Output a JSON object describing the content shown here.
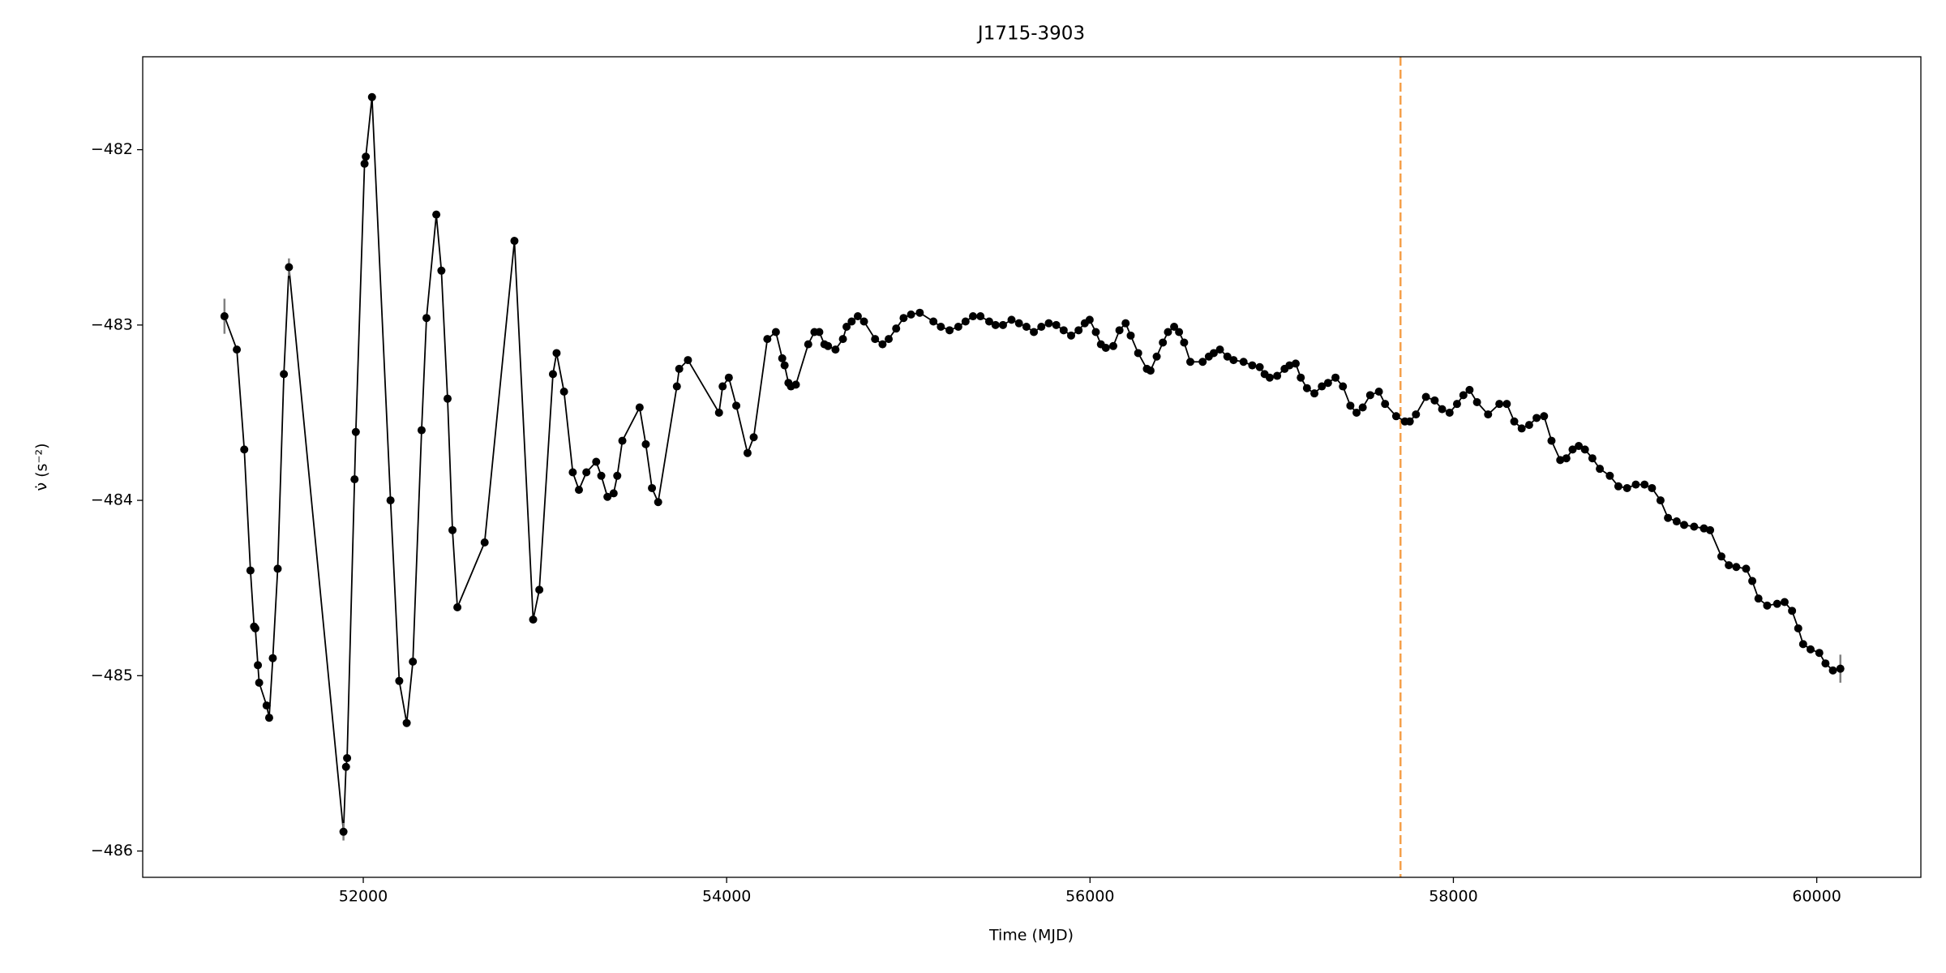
{
  "chart_data": {
    "type": "line",
    "title": "J1715-3903",
    "xlabel": "Time (MJD)",
    "ylabel": "ν̇ (s⁻²)",
    "xlim": [
      50786,
      60573
    ],
    "ylim": [
      -486.15,
      -481.47
    ],
    "xticks": [
      52000,
      54000,
      56000,
      58000,
      60000
    ],
    "yticks": [
      {
        "value": -486,
        "label": "−486"
      },
      {
        "value": -485,
        "label": "−485"
      },
      {
        "value": -484,
        "label": "−484"
      },
      {
        "value": -483,
        "label": "−483"
      },
      {
        "value": -482,
        "label": "−482"
      }
    ],
    "grid": false,
    "series": [
      {
        "color": "#000000",
        "error_color": "#808080",
        "x": [
          51236,
          51304,
          51345,
          51379,
          51399,
          51406,
          51420,
          51427,
          51468,
          51482,
          51502,
          51529,
          51563,
          51591,
          51891,
          51905,
          51911,
          51952,
          51959,
          52007,
          52014,
          52048,
          52150,
          52198,
          52239,
          52273,
          52321,
          52348,
          52402,
          52430,
          52464,
          52491,
          52518,
          52668,
          52832,
          52935,
          52969,
          53044,
          53064,
          53105,
          53153,
          53187,
          53228,
          53282,
          53310,
          53344,
          53378,
          53398,
          53426,
          53521,
          53555,
          53589,
          53623,
          53726,
          53739,
          53787,
          53958,
          53978,
          54012,
          54053,
          54115,
          54149,
          54224,
          54271,
          54306,
          54319,
          54340,
          54354,
          54381,
          54449,
          54483,
          54510,
          54538,
          54558,
          54599,
          54640,
          54660,
          54688,
          54722,
          54756,
          54817,
          54858,
          54892,
          54933,
          54974,
          55015,
          55063,
          55138,
          55179,
          55227,
          55275,
          55315,
          55356,
          55397,
          55445,
          55480,
          55521,
          55568,
          55609,
          55650,
          55691,
          55732,
          55773,
          55814,
          55855,
          55896,
          55937,
          55971,
          55998,
          56032,
          56060,
          56087,
          56128,
          56162,
          56196,
          56224,
          56265,
          56313,
          56333,
          56367,
          56401,
          56429,
          56463,
          56490,
          56518,
          56552,
          56620,
          56654,
          56681,
          56715,
          56756,
          56790,
          56845,
          56893,
          56934,
          56961,
          56989,
          57030,
          57071,
          57098,
          57132,
          57160,
          57194,
          57235,
          57276,
          57310,
          57351,
          57392,
          57433,
          57467,
          57501,
          57542,
          57590,
          57624,
          57685,
          57733,
          57760,
          57794,
          57849,
          57897,
          57938,
          57979,
          58020,
          58055,
          58089,
          58130,
          58191,
          58253,
          58294,
          58335,
          58376,
          58417,
          58458,
          58499,
          58540,
          58588,
          58622,
          58656,
          58690,
          58724,
          58765,
          58806,
          58861,
          58908,
          58956,
          59004,
          59052,
          59093,
          59140,
          59181,
          59229,
          59270,
          59325,
          59379,
          59413,
          59475,
          59516,
          59557,
          59611,
          59645,
          59679,
          59727,
          59782,
          59823,
          59864,
          59898,
          59925,
          59966,
          60014,
          60048,
          60089,
          60130
        ],
        "values": [
          -482.95,
          -483.14,
          -483.71,
          -484.4,
          -484.72,
          -484.73,
          -484.94,
          -485.04,
          -485.17,
          -485.24,
          -484.9,
          -484.39,
          -483.28,
          -482.67,
          -485.89,
          -485.52,
          -485.47,
          -483.88,
          -483.61,
          -482.08,
          -482.04,
          -481.7,
          -484.0,
          -485.03,
          -485.27,
          -484.92,
          -483.6,
          -482.96,
          -482.37,
          -482.69,
          -483.42,
          -484.17,
          -484.61,
          -484.24,
          -482.52,
          -484.68,
          -484.51,
          -483.28,
          -483.16,
          -483.38,
          -483.84,
          -483.94,
          -483.84,
          -483.78,
          -483.86,
          -483.98,
          -483.96,
          -483.86,
          -483.66,
          -483.47,
          -483.68,
          -483.93,
          -484.01,
          -483.35,
          -483.25,
          -483.2,
          -483.5,
          -483.35,
          -483.3,
          -483.46,
          -483.73,
          -483.64,
          -483.08,
          -483.04,
          -483.19,
          -483.23,
          -483.33,
          -483.35,
          -483.34,
          -483.11,
          -483.04,
          -483.04,
          -483.11,
          -483.12,
          -483.14,
          -483.08,
          -483.01,
          -482.98,
          -482.95,
          -482.98,
          -483.08,
          -483.11,
          -483.08,
          -483.02,
          -482.96,
          -482.94,
          -482.93,
          -482.98,
          -483.01,
          -483.03,
          -483.01,
          -482.98,
          -482.95,
          -482.95,
          -482.98,
          -483.0,
          -483.0,
          -482.97,
          -482.99,
          -483.01,
          -483.04,
          -483.01,
          -482.99,
          -483.0,
          -483.03,
          -483.06,
          -483.03,
          -482.99,
          -482.97,
          -483.04,
          -483.11,
          -483.13,
          -483.12,
          -483.03,
          -482.99,
          -483.06,
          -483.16,
          -483.25,
          -483.26,
          -483.18,
          -483.1,
          -483.04,
          -483.01,
          -483.04,
          -483.1,
          -483.21,
          -483.21,
          -483.18,
          -483.16,
          -483.14,
          -483.18,
          -483.2,
          -483.21,
          -483.23,
          -483.24,
          -483.28,
          -483.3,
          -483.29,
          -483.25,
          -483.23,
          -483.22,
          -483.3,
          -483.36,
          -483.39,
          -483.35,
          -483.33,
          -483.3,
          -483.35,
          -483.46,
          -483.5,
          -483.47,
          -483.4,
          -483.38,
          -483.45,
          -483.52,
          -483.55,
          -483.55,
          -483.51,
          -483.41,
          -483.43,
          -483.48,
          -483.5,
          -483.45,
          -483.4,
          -483.37,
          -483.44,
          -483.51,
          -483.45,
          -483.45,
          -483.55,
          -483.59,
          -483.57,
          -483.53,
          -483.52,
          -483.66,
          -483.77,
          -483.76,
          -483.71,
          -483.69,
          -483.71,
          -483.76,
          -483.82,
          -483.86,
          -483.92,
          -483.93,
          -483.91,
          -483.91,
          -483.93,
          -484.0,
          -484.1,
          -484.12,
          -484.14,
          -484.15,
          -484.16,
          -484.17,
          -484.32,
          -484.37,
          -484.38,
          -484.39,
          -484.46,
          -484.56,
          -484.6,
          -484.59,
          -484.58,
          -484.63,
          -484.73,
          -484.82,
          -484.85,
          -484.87,
          -484.93,
          -484.97,
          -484.96
        ],
        "yerr": [
          0.1,
          0.01,
          0.01,
          0.01,
          0.01,
          0.01,
          0.01,
          0.01,
          0.01,
          0.01,
          0.01,
          0.01,
          0.01,
          0.05,
          0.05,
          0.01,
          0.01,
          0.01,
          0.01,
          0.01,
          0.01,
          0.01,
          0.01,
          0.01,
          0.01,
          0.01,
          0.01,
          0.01,
          0.01,
          0.01,
          0.01,
          0.01,
          0.01,
          0.01,
          0.01,
          0.01,
          0.01,
          0.01,
          0.01,
          0.01,
          0.01,
          0.01,
          0.01,
          0.01,
          0.01,
          0.01,
          0.01,
          0.01,
          0.01,
          0.01,
          0.01,
          0.01,
          0.01,
          0.01,
          0.01,
          0.01,
          0.01,
          0.01,
          0.01,
          0.01,
          0.01,
          0.01,
          0.01,
          0.01,
          0.01,
          0.01,
          0.01,
          0.01,
          0.01,
          0.01,
          0.01,
          0.01,
          0.01,
          0.01,
          0.01,
          0.01,
          0.01,
          0.01,
          0.01,
          0.01,
          0.01,
          0.01,
          0.01,
          0.01,
          0.01,
          0.01,
          0.01,
          0.01,
          0.01,
          0.01,
          0.01,
          0.01,
          0.01,
          0.01,
          0.01,
          0.01,
          0.01,
          0.01,
          0.01,
          0.01,
          0.01,
          0.01,
          0.01,
          0.01,
          0.01,
          0.01,
          0.01,
          0.01,
          0.01,
          0.01,
          0.01,
          0.01,
          0.01,
          0.01,
          0.01,
          0.01,
          0.01,
          0.01,
          0.01,
          0.01,
          0.01,
          0.01,
          0.01,
          0.01,
          0.01,
          0.01,
          0.01,
          0.01,
          0.01,
          0.01,
          0.01,
          0.01,
          0.01,
          0.01,
          0.01,
          0.01,
          0.01,
          0.01,
          0.01,
          0.01,
          0.01,
          0.01,
          0.01,
          0.01,
          0.01,
          0.01,
          0.01,
          0.01,
          0.01,
          0.01,
          0.01,
          0.01,
          0.01,
          0.01,
          0.01,
          0.01,
          0.01,
          0.01,
          0.01,
          0.01,
          0.01,
          0.01,
          0.01,
          0.01,
          0.01,
          0.01,
          0.01,
          0.01,
          0.01,
          0.01,
          0.01,
          0.01,
          0.01,
          0.01,
          0.01,
          0.01,
          0.01,
          0.01,
          0.01,
          0.01,
          0.01,
          0.01,
          0.01,
          0.01,
          0.01,
          0.01,
          0.01,
          0.01,
          0.01,
          0.01,
          0.01,
          0.01,
          0.01,
          0.01,
          0.01,
          0.01,
          0.01,
          0.01,
          0.01,
          0.01,
          0.01,
          0.01,
          0.01,
          0.01,
          0.01,
          0.01,
          0.01,
          0.01,
          0.01,
          0.01,
          0.01,
          0.08
        ]
      }
    ],
    "vlines": [
      {
        "x": 57709,
        "color": "#f5a04a",
        "style": "dashed"
      }
    ]
  }
}
